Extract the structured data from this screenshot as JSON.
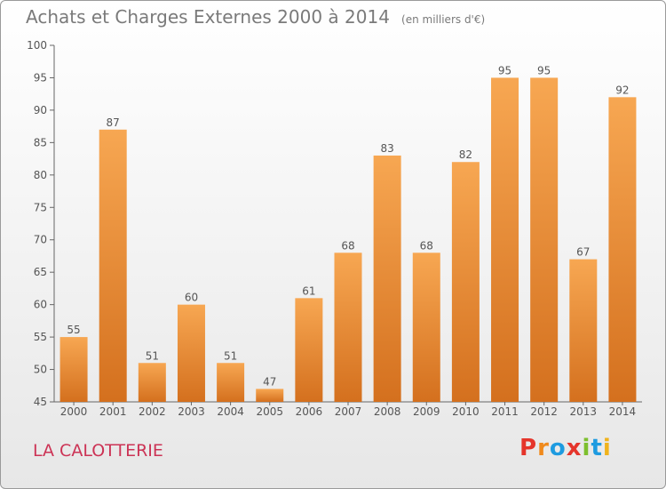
{
  "header": {
    "title": "Achats et Charges Externes 2000 à 2014",
    "unit": "(en milliers d'€)"
  },
  "footer": {
    "location": "LA CALOTTERIE",
    "logo_text": "Proxiti"
  },
  "colors": {
    "bar_top": "#f7a752",
    "bar_bottom": "#d4701e",
    "text": "#555555",
    "title": "#7a7a7a",
    "location": "#cc3355",
    "logo_letters": [
      "#e5352b",
      "#f08a1c",
      "#1e9be0",
      "#e5352b",
      "#7dbf2e",
      "#1e9be0",
      "#f0b31c"
    ]
  },
  "chart_data": {
    "type": "bar",
    "categories": [
      "2000",
      "2001",
      "2002",
      "2003",
      "2004",
      "2005",
      "2006",
      "2007",
      "2008",
      "2009",
      "2010",
      "2011",
      "2012",
      "2013",
      "2014"
    ],
    "values": [
      55,
      87,
      51,
      60,
      51,
      47,
      61,
      68,
      83,
      68,
      82,
      95,
      95,
      67,
      92
    ],
    "ylim": [
      45,
      100
    ],
    "yticks": [
      45,
      50,
      55,
      60,
      65,
      70,
      75,
      80,
      85,
      90,
      95,
      100
    ],
    "grid": false,
    "data_labels": true
  }
}
